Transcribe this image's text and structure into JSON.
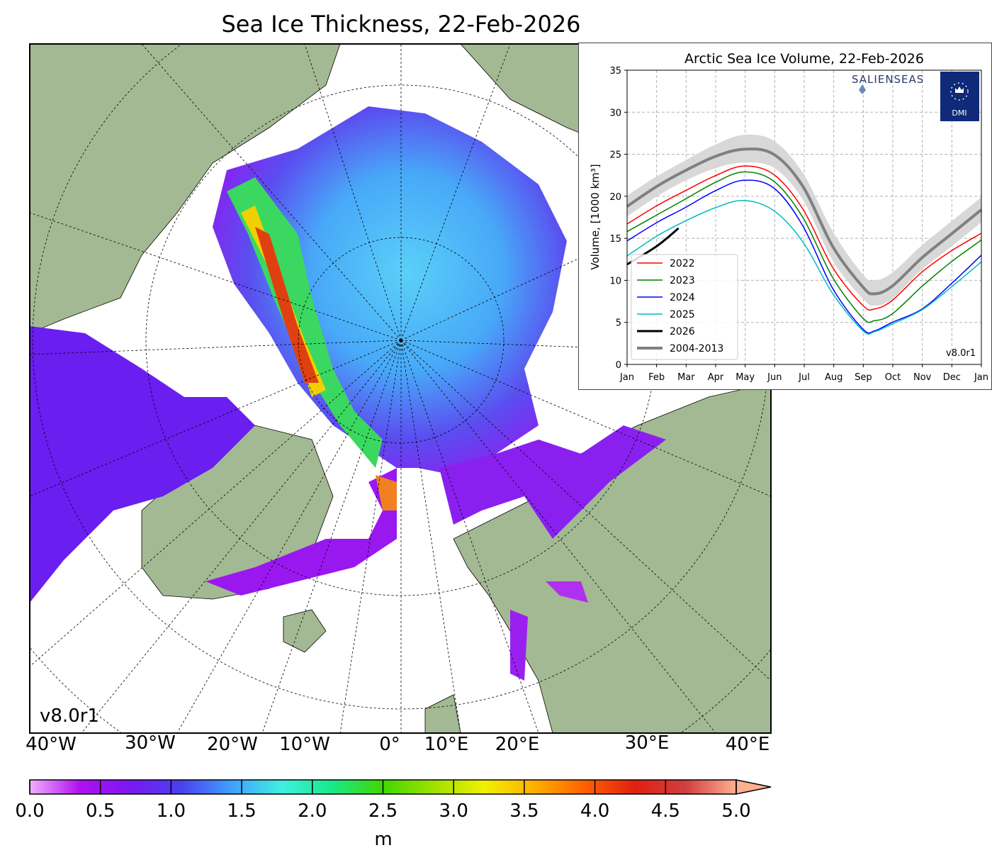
{
  "map": {
    "title": "Sea Ice Thickness, 22-Feb-2026",
    "version": "v8.0r1",
    "longitude_labels": [
      "40°W",
      "30°W",
      "20°W",
      "10°W",
      "0°",
      "10°E",
      "20°E",
      "30°E",
      "40°E"
    ],
    "land_color": "#a3b993",
    "ocean_color": "#ffffff",
    "river_color": "#8fb4e6"
  },
  "colorbar": {
    "ticks": [
      "0.0",
      "0.5",
      "1.0",
      "1.5",
      "2.0",
      "2.5",
      "3.0",
      "3.5",
      "4.0",
      "4.5",
      "5.0"
    ],
    "min": 0.0,
    "max": 5.0,
    "unit": "m",
    "extend": "max",
    "colors": [
      "#f0b0ff",
      "#b010f0",
      "#7a18f0",
      "#4a40ee",
      "#40a0ff",
      "#3ff0e0",
      "#18e888",
      "#40d800",
      "#9ee000",
      "#f0f000",
      "#ffb000",
      "#ff6000",
      "#e02010",
      "#d04040",
      "#ffb090"
    ]
  },
  "chart_data": {
    "type": "line",
    "title": "Arctic Sea Ice Volume, 22-Feb-2026",
    "ylabel": "Volume, [1000 km³]",
    "xlabel": "",
    "x_tick_labels": [
      "Jan",
      "Feb",
      "Mar",
      "Apr",
      "May",
      "Jun",
      "Jul",
      "Aug",
      "Sep",
      "Oct",
      "Nov",
      "Dec",
      "Jan"
    ],
    "y_tick_labels": [
      "0",
      "5",
      "10",
      "15",
      "20",
      "25",
      "30",
      "35"
    ],
    "xlim": [
      0,
      365
    ],
    "ylim": [
      0,
      35
    ],
    "grid": true,
    "legend_position": "lower-left",
    "logos": [
      "SALIENSEAS",
      "DMI"
    ],
    "version": "v8.0r1",
    "series": [
      {
        "name": "2022",
        "color": "#ff0000",
        "x": [
          0,
          31,
          59,
          90,
          120,
          151,
          181,
          212,
          243,
          255,
          273,
          304,
          334,
          365
        ],
        "values": [
          16.7,
          18.9,
          20.6,
          22.4,
          23.6,
          22.6,
          18.5,
          11.5,
          7.0,
          6.6,
          7.6,
          11.0,
          13.5,
          15.6
        ]
      },
      {
        "name": "2023",
        "color": "#008000",
        "x": [
          0,
          31,
          59,
          90,
          120,
          151,
          181,
          212,
          243,
          255,
          273,
          304,
          334,
          365
        ],
        "values": [
          15.8,
          17.8,
          19.6,
          21.6,
          22.9,
          21.8,
          17.5,
          10.3,
          5.5,
          5.2,
          6.0,
          9.3,
          12.2,
          14.8
        ]
      },
      {
        "name": "2024",
        "color": "#0000ff",
        "x": [
          0,
          31,
          59,
          90,
          120,
          151,
          181,
          212,
          243,
          255,
          273,
          304,
          334,
          365
        ],
        "values": [
          14.7,
          16.9,
          18.6,
          20.6,
          21.9,
          21.0,
          16.5,
          9.0,
          4.2,
          4.0,
          5.0,
          6.6,
          9.6,
          13.0
        ]
      },
      {
        "name": "2025",
        "color": "#00bcbc",
        "x": [
          0,
          31,
          59,
          90,
          120,
          151,
          181,
          212,
          243,
          255,
          273,
          304,
          334,
          365
        ],
        "values": [
          12.9,
          15.3,
          17.0,
          18.6,
          19.5,
          18.3,
          14.6,
          8.4,
          4.0,
          3.9,
          4.8,
          6.5,
          9.2,
          12.2
        ]
      },
      {
        "name": "2026",
        "color": "#000000",
        "x": [
          0,
          31,
          53
        ],
        "values": [
          11.9,
          14.1,
          16.2
        ]
      },
      {
        "name": "2004-2013",
        "color": "#808080",
        "x": [
          0,
          31,
          59,
          90,
          120,
          151,
          181,
          212,
          243,
          255,
          273,
          304,
          334,
          365
        ],
        "values": [
          18.8,
          21.2,
          23.0,
          24.7,
          25.6,
          25.0,
          21.2,
          14.0,
          9.2,
          8.4,
          9.3,
          12.7,
          15.5,
          18.4
        ],
        "band_upper": [
          20.1,
          22.4,
          24.2,
          26.1,
          27.3,
          26.6,
          22.8,
          15.8,
          10.7,
          10.0,
          10.9,
          14.2,
          17.0,
          19.9
        ],
        "band_lower": [
          17.6,
          20.0,
          21.8,
          23.3,
          24.0,
          23.4,
          19.6,
          12.3,
          7.8,
          7.0,
          7.8,
          11.3,
          14.0,
          16.9
        ]
      }
    ]
  }
}
